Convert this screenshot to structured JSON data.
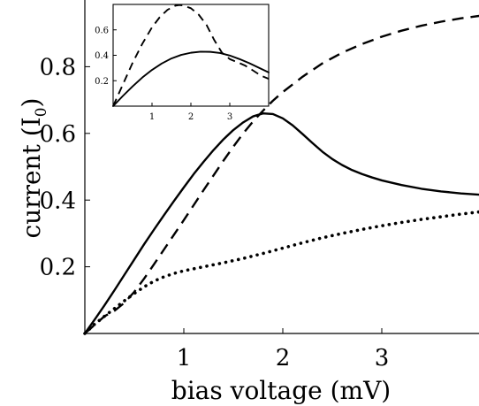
{
  "chart_data": [
    {
      "type": "line",
      "title": "",
      "xlabel": "bias voltage (mV)",
      "ylabel": "current (I",
      "ylabel_sub": "0",
      "ylabel_end": ")",
      "xlim": [
        0,
        4
      ],
      "ylim": [
        0,
        1.0
      ],
      "xticks": [
        1,
        2,
        3
      ],
      "xtick_labels": [
        "1",
        "2",
        "3"
      ],
      "yticks": [
        0.2,
        0.4,
        0.6,
        0.8
      ],
      "ytick_labels": [
        "0.2",
        "0.4",
        "0.6",
        "0.8"
      ],
      "grid": false,
      "colors": {
        "line": "#000000"
      },
      "series": [
        {
          "style": "solid",
          "x": [
            0,
            0.1,
            0.2,
            0.3,
            0.4,
            0.5,
            0.6,
            0.7,
            0.8,
            0.9,
            1.0,
            1.1,
            1.2,
            1.3,
            1.4,
            1.5,
            1.6,
            1.7,
            1.8,
            1.9,
            2.0,
            2.1,
            2.2,
            2.3,
            2.4,
            2.5,
            2.6,
            2.7,
            2.8,
            2.9,
            3.0,
            3.2,
            3.4,
            3.6,
            3.8,
            4.0
          ],
          "y": [
            0,
            0.042,
            0.085,
            0.13,
            0.176,
            0.222,
            0.268,
            0.312,
            0.355,
            0.397,
            0.438,
            0.478,
            0.515,
            0.55,
            0.582,
            0.61,
            0.633,
            0.651,
            0.66,
            0.658,
            0.645,
            0.624,
            0.598,
            0.571,
            0.545,
            0.523,
            0.505,
            0.49,
            0.478,
            0.468,
            0.459,
            0.445,
            0.434,
            0.426,
            0.42,
            0.416
          ]
        },
        {
          "style": "dashed",
          "x": [
            0,
            0.1,
            0.2,
            0.3,
            0.4,
            0.5,
            0.6,
            0.7,
            0.8,
            0.9,
            1.0,
            1.1,
            1.2,
            1.3,
            1.4,
            1.5,
            1.6,
            1.7,
            1.8,
            1.9,
            2.0,
            2.2,
            2.4,
            2.6,
            2.8,
            3.0,
            3.2,
            3.4,
            3.6,
            3.8,
            4.0
          ],
          "y": [
            0,
            0.026,
            0.052,
            0.068,
            0.092,
            0.125,
            0.165,
            0.208,
            0.252,
            0.296,
            0.34,
            0.385,
            0.43,
            0.474,
            0.518,
            0.56,
            0.6,
            0.636,
            0.668,
            0.698,
            0.724,
            0.77,
            0.81,
            0.842,
            0.868,
            0.89,
            0.908,
            0.923,
            0.935,
            0.945,
            0.953
          ]
        },
        {
          "style": "dotted",
          "x": [
            0,
            0.1,
            0.2,
            0.3,
            0.4,
            0.5,
            0.6,
            0.7,
            0.8,
            0.9,
            1.0,
            1.2,
            1.4,
            1.6,
            1.8,
            2.0,
            2.2,
            2.4,
            2.6,
            2.8,
            3.0,
            3.2,
            3.4,
            3.6,
            3.8,
            4.0
          ],
          "y": [
            0,
            0.028,
            0.052,
            0.075,
            0.098,
            0.12,
            0.14,
            0.157,
            0.17,
            0.18,
            0.188,
            0.2,
            0.212,
            0.225,
            0.24,
            0.256,
            0.272,
            0.287,
            0.3,
            0.312,
            0.323,
            0.333,
            0.342,
            0.35,
            0.358,
            0.365
          ]
        }
      ]
    },
    {
      "type": "line",
      "title": "",
      "xlabel": "",
      "ylabel": "",
      "xlim": [
        0,
        4
      ],
      "ylim": [
        0,
        0.8
      ],
      "xticks": [
        1,
        2,
        3
      ],
      "xtick_labels": [
        "1",
        "2",
        "3"
      ],
      "yticks": [
        0.2,
        0.4,
        0.6
      ],
      "ytick_labels": [
        "0.2",
        "0.4",
        "0.6"
      ],
      "grid": false,
      "legend": "none",
      "series": [
        {
          "style": "solid",
          "x": [
            0,
            0.25,
            0.5,
            0.75,
            1.0,
            1.25,
            1.5,
            1.75,
            2.0,
            2.25,
            2.5,
            2.75,
            3.0,
            3.25,
            3.5,
            3.75,
            4.0
          ],
          "y": [
            0,
            0.08,
            0.155,
            0.225,
            0.285,
            0.335,
            0.375,
            0.403,
            0.42,
            0.428,
            0.427,
            0.418,
            0.398,
            0.37,
            0.338,
            0.302,
            0.265
          ]
        },
        {
          "style": "dashed",
          "x": [
            0,
            0.25,
            0.5,
            0.75,
            1.0,
            1.2,
            1.4,
            1.6,
            1.7,
            1.8,
            2.0,
            2.2,
            2.4,
            2.6,
            2.8,
            3.0,
            3.2,
            3.4,
            3.6,
            3.8,
            4.0
          ],
          "y": [
            0,
            0.17,
            0.34,
            0.49,
            0.62,
            0.7,
            0.758,
            0.79,
            0.795,
            0.792,
            0.77,
            0.72,
            0.64,
            0.52,
            0.42,
            0.37,
            0.345,
            0.318,
            0.28,
            0.24,
            0.215
          ]
        }
      ]
    }
  ]
}
